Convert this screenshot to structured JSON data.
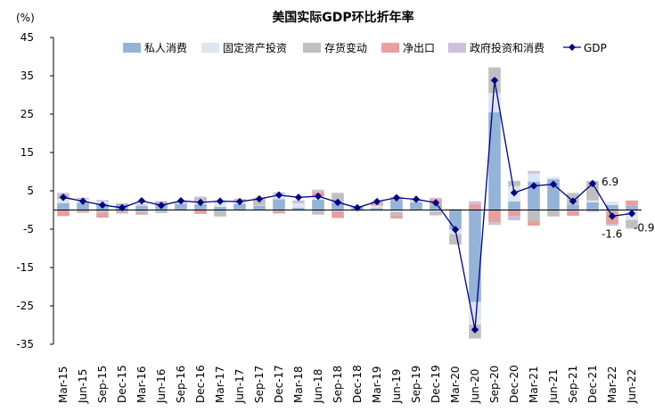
{
  "chart_data": {
    "type": "bar",
    "title": "美国实际GDP环比折年率",
    "ylabel": "(%)",
    "ylim": [
      -35,
      45
    ],
    "yticks": [
      45,
      35,
      25,
      15,
      5,
      -5,
      -15,
      -25,
      -35
    ],
    "categories": [
      "Mar-15",
      "Jun-15",
      "Sep-15",
      "Dec-15",
      "Mar-16",
      "Jun-16",
      "Sep-16",
      "Dec-16",
      "Mar-17",
      "Jun-17",
      "Sep-17",
      "Dec-17",
      "Mar-18",
      "Jun-18",
      "Sep-18",
      "Dec-18",
      "Mar-19",
      "Jun-19",
      "Sep-19",
      "Dec-19",
      "Mar-20",
      "Jun-20",
      "Sep-20",
      "Dec-20",
      "Mar-21",
      "Jun-21",
      "Sep-21",
      "Dec-21",
      "Mar-22",
      "Jun-22"
    ],
    "legend_position": "top",
    "series": [
      {
        "name": "私人消费",
        "kind": "bar",
        "color": "#95b3d7",
        "values": [
          1.8,
          1.9,
          1.7,
          1.5,
          1.1,
          2.0,
          1.6,
          1.5,
          0.8,
          1.6,
          1.1,
          2.8,
          0.6,
          2.7,
          2.0,
          0.8,
          0.5,
          2.6,
          2.0,
          1.3,
          -5.0,
          -24.0,
          25.5,
          2.2,
          7.4,
          8.0,
          1.3,
          2.0,
          1.3,
          1.1
        ]
      },
      {
        "name": "固定资产投资",
        "kind": "bar",
        "color": "#dce6f2",
        "values": [
          1.1,
          0.9,
          0.5,
          0.0,
          0.1,
          -0.2,
          0.1,
          0.8,
          1.4,
          0.9,
          0.1,
          1.3,
          1.2,
          0.8,
          -0.3,
          0.2,
          0.6,
          -0.5,
          0.3,
          -0.4,
          -1.3,
          -5.9,
          5.0,
          4.0,
          2.1,
          0.6,
          -0.2,
          0.5,
          0.9,
          -2.6
        ]
      },
      {
        "name": "存货变动",
        "kind": "bar",
        "color": "#bfbfbf",
        "values": [
          1.2,
          -0.3,
          -0.8,
          -0.7,
          -0.8,
          -0.6,
          0.2,
          1.0,
          -1.7,
          0.1,
          1.6,
          -0.3,
          0.3,
          -1.2,
          2.2,
          0.0,
          0.1,
          -1.0,
          0.1,
          -1.0,
          -2.7,
          -3.6,
          6.7,
          1.4,
          -2.8,
          -1.2,
          2.8,
          5.1,
          -0.4,
          -2.0
        ]
      },
      {
        "name": "净出口",
        "kind": "bar",
        "color": "#e6a0a0",
        "values": [
          -1.6,
          -0.4,
          -1.2,
          -0.2,
          -0.4,
          0.2,
          0.1,
          -1.0,
          0.2,
          0.2,
          0.3,
          -0.6,
          0.0,
          1.2,
          -1.8,
          -0.2,
          0.5,
          -0.7,
          -0.1,
          1.5,
          0.0,
          1.5,
          -3.2,
          -1.6,
          -1.3,
          -0.2,
          -1.3,
          -0.2,
          -3.2,
          1.4
        ]
      },
      {
        "name": "政府投资和消费",
        "kind": "bar",
        "color": "#ccc0da",
        "values": [
          0.4,
          0.4,
          0.4,
          0.3,
          0.3,
          0.1,
          0.2,
          0.2,
          0.1,
          0.1,
          0.1,
          0.5,
          0.4,
          0.6,
          0.3,
          0.0,
          0.6,
          0.9,
          0.4,
          0.4,
          0.2,
          0.8,
          -0.7,
          -1.1,
          0.7,
          -0.3,
          0.4,
          -0.3,
          -0.5,
          -0.3
        ]
      },
      {
        "name": "GDP",
        "kind": "line",
        "color": "#000080",
        "values": [
          3.3,
          2.3,
          1.3,
          0.6,
          2.4,
          1.2,
          2.4,
          2.0,
          2.3,
          2.2,
          2.9,
          3.9,
          3.3,
          3.6,
          2.0,
          0.6,
          2.2,
          3.2,
          2.8,
          1.9,
          -5.1,
          -31.2,
          33.8,
          4.5,
          6.3,
          6.7,
          2.3,
          6.9,
          -1.6,
          -0.9
        ]
      }
    ],
    "annotations": [
      {
        "text": "6.9",
        "at": "Dec-21",
        "value": 6.9
      },
      {
        "text": "-1.6",
        "at": "Mar-22",
        "value": -1.6
      },
      {
        "text": "-0.9",
        "at": "Jun-22",
        "value": -0.9
      }
    ]
  }
}
